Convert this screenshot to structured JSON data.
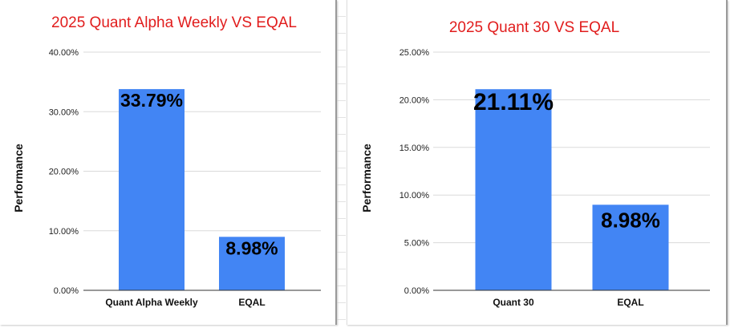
{
  "chart_data": [
    {
      "type": "bar",
      "title": "2025 Quant Alpha Weekly VS EQAL",
      "xlabel": "",
      "ylabel": "Performance",
      "categories": [
        "Quant Alpha Weekly",
        "EQAL"
      ],
      "values": [
        33.79,
        8.98
      ],
      "data_labels": [
        "33.79%",
        "8.98%"
      ],
      "ylim": [
        0,
        40
      ],
      "yticks": [
        0,
        10,
        20,
        30,
        40
      ],
      "ytick_labels": [
        "0.00%",
        "10.00%",
        "20.00%",
        "30.00%",
        "40.00%"
      ],
      "grid": true,
      "bar_color": "#4285f4",
      "title_color": "#e11d1d"
    },
    {
      "type": "bar",
      "title": "2025 Quant 30 VS EQAL",
      "xlabel": "",
      "ylabel": "Performance",
      "categories": [
        "Quant 30",
        "EQAL"
      ],
      "values": [
        21.11,
        8.98
      ],
      "data_labels": [
        "21.11%",
        "8.98%"
      ],
      "ylim": [
        0,
        25
      ],
      "yticks": [
        0,
        5,
        10,
        15,
        20,
        25
      ],
      "ytick_labels": [
        "0.00%",
        "5.00%",
        "10.00%",
        "15.00%",
        "20.00%",
        "25.00%"
      ],
      "grid": true,
      "bar_color": "#4285f4",
      "title_color": "#e11d1d"
    }
  ]
}
